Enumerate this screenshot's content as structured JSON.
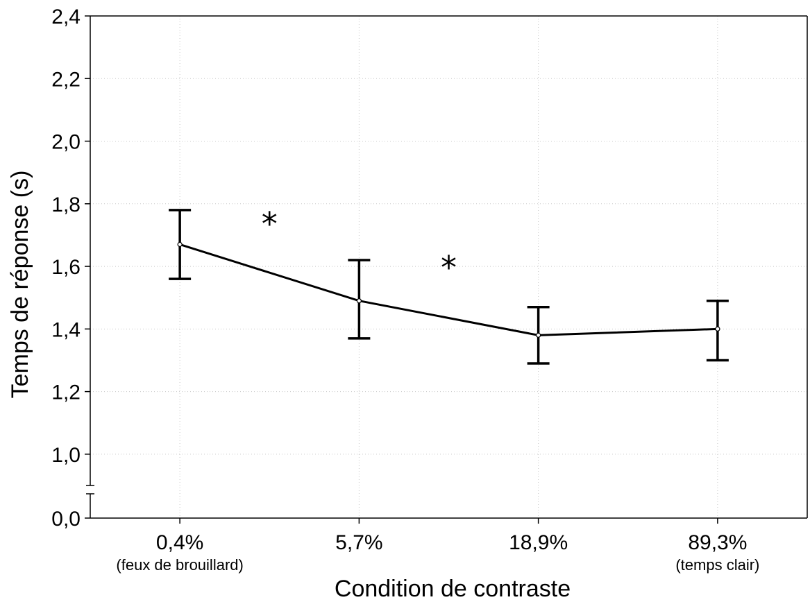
{
  "chart_data": {
    "type": "line",
    "xlabel": "Condition de contraste",
    "ylabel": "Temps de réponse (s)",
    "categories": [
      "0,4%",
      "5,7%",
      "18,9%",
      "89,3%"
    ],
    "category_sublabels": [
      "(feux de brouillard)",
      "",
      "",
      "(temps clair)"
    ],
    "series": [
      {
        "values": [
          1.67,
          1.49,
          1.38,
          1.4
        ],
        "lower": [
          1.56,
          1.37,
          1.29,
          1.3
        ],
        "upper": [
          1.78,
          1.62,
          1.47,
          1.49
        ]
      }
    ],
    "y_ticks": [
      {
        "value": 0.0,
        "label": "0,0"
      },
      {
        "value": 1.0,
        "label": "1,0"
      },
      {
        "value": 1.2,
        "label": "1,2"
      },
      {
        "value": 1.4,
        "label": "1,4"
      },
      {
        "value": 1.6,
        "label": "1,6"
      },
      {
        "value": 1.8,
        "label": "1,8"
      },
      {
        "value": 2.0,
        "label": "2,0"
      },
      {
        "value": 2.2,
        "label": "2,2"
      },
      {
        "value": 2.4,
        "label": "2,4"
      }
    ],
    "ylim_upper_segment": [
      0.9,
      2.4
    ],
    "y_axis_break": true,
    "annotations": [
      {
        "text": "*",
        "between": [
          0,
          1
        ],
        "y": 1.74
      },
      {
        "text": "*",
        "between": [
          1,
          2
        ],
        "y": 1.6
      }
    ],
    "grid": true
  }
}
